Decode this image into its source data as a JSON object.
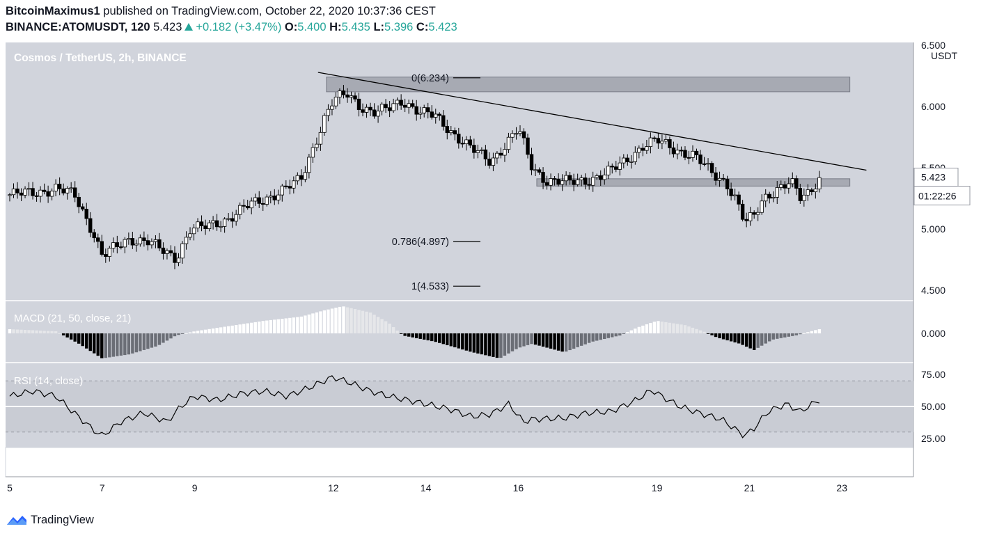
{
  "header": {
    "author": "BitcoinMaximus1",
    "published_text": "published on TradingView.com, October 22, 2020 10:37:36 CEST",
    "symbol": "BINANCE:ATOMUSDT, 120",
    "price": "5.423",
    "change": "+0.182 (+3.47%)",
    "o_label": "O:",
    "o_value": "5.400",
    "h_label": "H:",
    "h_value": "5.435",
    "l_label": "L:",
    "l_value": "5.396",
    "c_label": "C:",
    "c_value": "5.423"
  },
  "pane_title": "Cosmos / TetherUS, 2h, BINANCE",
  "currency_label": "USDT",
  "last_price_label": "5.423",
  "countdown_label": "01:22:26",
  "fib_labels": {
    "level0": "0(6.234)",
    "level786": "0.786(4.897)",
    "level1": "1(4.533)"
  },
  "macd_label": "MACD (21, 50, close, 21)",
  "rsi_label": "RSI (14, close)",
  "footer_brand": "TradingView",
  "colors": {
    "pane_bg": "#d1d4dc",
    "up_candle": "#ffffff",
    "down_candle": "#000000",
    "zone": "#9598a1",
    "accent_green": "#26a69a"
  },
  "chart_data": [
    {
      "type": "candlestick",
      "title": "Cosmos / TetherUS, 2h, BINANCE",
      "ylabel": "USDT",
      "ylim": [
        4.5,
        6.5
      ],
      "y_ticks": [
        "6.500",
        "6.000",
        "5.500",
        "5.000",
        "4.500"
      ],
      "x_ticks": [
        "5",
        "7",
        "9",
        "12",
        "14",
        "16",
        "19",
        "21",
        "23"
      ],
      "close_path": [
        [
          5.0,
          5.28
        ],
        [
          5.6,
          5.3
        ],
        [
          6.0,
          5.33
        ],
        [
          6.4,
          5.28
        ],
        [
          6.8,
          4.98
        ],
        [
          7.0,
          4.78
        ],
        [
          7.3,
          4.85
        ],
        [
          7.6,
          4.92
        ],
        [
          8.0,
          4.9
        ],
        [
          8.3,
          4.82
        ],
        [
          8.6,
          4.76
        ],
        [
          8.9,
          5.0
        ],
        [
          9.3,
          5.02
        ],
        [
          9.7,
          5.08
        ],
        [
          10.1,
          5.18
        ],
        [
          10.5,
          5.24
        ],
        [
          10.9,
          5.32
        ],
        [
          11.3,
          5.4
        ],
        [
          11.6,
          5.7
        ],
        [
          11.8,
          5.9
        ],
        [
          12.0,
          6.05
        ],
        [
          12.3,
          6.1
        ],
        [
          12.6,
          6.0
        ],
        [
          12.9,
          5.95
        ],
        [
          13.2,
          5.98
        ],
        [
          13.5,
          6.05
        ],
        [
          13.9,
          5.95
        ],
        [
          14.2,
          5.92
        ],
        [
          14.6,
          5.78
        ],
        [
          15.0,
          5.65
        ],
        [
          15.4,
          5.55
        ],
        [
          15.7,
          5.68
        ],
        [
          16.0,
          5.82
        ],
        [
          16.3,
          5.5
        ],
        [
          16.6,
          5.4
        ],
        [
          17.1,
          5.38
        ],
        [
          17.5,
          5.4
        ],
        [
          17.9,
          5.45
        ],
        [
          18.3,
          5.55
        ],
        [
          18.7,
          5.68
        ],
        [
          19.0,
          5.72
        ],
        [
          19.4,
          5.65
        ],
        [
          19.8,
          5.6
        ],
        [
          20.2,
          5.45
        ],
        [
          20.5,
          5.38
        ],
        [
          20.7,
          5.25
        ],
        [
          20.9,
          5.05
        ],
        [
          21.1,
          5.1
        ],
        [
          21.3,
          5.25
        ],
        [
          21.6,
          5.33
        ],
        [
          21.9,
          5.38
        ],
        [
          22.1,
          5.25
        ],
        [
          22.3,
          5.3
        ],
        [
          22.5,
          5.42
        ]
      ],
      "annotations": {
        "resistance_zone": [
          6.12,
          6.24
        ],
        "support_zone": [
          5.35,
          5.41
        ],
        "trendline": [
          [
            12.0,
            6.29
          ],
          [
            23.5,
            5.48
          ]
        ],
        "fib_levels": [
          {
            "ratio": 0,
            "price": 6.234
          },
          {
            "ratio": 0.786,
            "price": 4.897
          },
          {
            "ratio": 1,
            "price": 4.533
          }
        ]
      },
      "last_price": 5.423
    },
    {
      "type": "bar",
      "title": "MACD (21, 50, close, 21)",
      "y_ticks": [
        "0.000"
      ],
      "histogram_path": [
        [
          5.0,
          0.02
        ],
        [
          6.0,
          0.01
        ],
        [
          6.5,
          -0.05
        ],
        [
          7.0,
          -0.12
        ],
        [
          7.6,
          -0.1
        ],
        [
          8.2,
          -0.06
        ],
        [
          8.6,
          -0.01
        ],
        [
          9.0,
          0.01
        ],
        [
          9.6,
          0.03
        ],
        [
          10.5,
          0.06
        ],
        [
          11.3,
          0.08
        ],
        [
          11.8,
          0.11
        ],
        [
          12.2,
          0.13
        ],
        [
          12.8,
          0.1
        ],
        [
          13.2,
          0.05
        ],
        [
          13.5,
          -0.01
        ],
        [
          14.2,
          -0.04
        ],
        [
          15.0,
          -0.09
        ],
        [
          15.6,
          -0.12
        ],
        [
          16.0,
          -0.07
        ],
        [
          16.3,
          -0.05
        ],
        [
          17.0,
          -0.09
        ],
        [
          17.6,
          -0.04
        ],
        [
          18.2,
          -0.01
        ],
        [
          18.6,
          0.03
        ],
        [
          19.0,
          0.06
        ],
        [
          19.6,
          0.04
        ],
        [
          20.0,
          0.01
        ],
        [
          20.3,
          -0.02
        ],
        [
          20.8,
          -0.05
        ],
        [
          21.1,
          -0.08
        ],
        [
          21.5,
          -0.03
        ],
        [
          22.0,
          -0.01
        ],
        [
          22.5,
          0.02
        ]
      ]
    },
    {
      "type": "line",
      "title": "RSI (14, close)",
      "ylim": [
        0,
        100
      ],
      "y_ticks": [
        "75.00",
        "50.00",
        "25.00"
      ],
      "values_path": [
        [
          5.0,
          58
        ],
        [
          5.5,
          62
        ],
        [
          6.0,
          58
        ],
        [
          6.3,
          48
        ],
        [
          6.8,
          32
        ],
        [
          7.0,
          27
        ],
        [
          7.4,
          38
        ],
        [
          7.9,
          45
        ],
        [
          8.4,
          38
        ],
        [
          8.7,
          50
        ],
        [
          9.0,
          58
        ],
        [
          9.5,
          55
        ],
        [
          10.0,
          60
        ],
        [
          10.5,
          62
        ],
        [
          11.0,
          58
        ],
        [
          11.5,
          65
        ],
        [
          11.8,
          70
        ],
        [
          12.0,
          73
        ],
        [
          12.4,
          68
        ],
        [
          12.8,
          62
        ],
        [
          13.2,
          58
        ],
        [
          13.6,
          55
        ],
        [
          14.0,
          52
        ],
        [
          14.5,
          48
        ],
        [
          15.0,
          42
        ],
        [
          15.4,
          44
        ],
        [
          15.8,
          52
        ],
        [
          16.1,
          38
        ],
        [
          16.3,
          40
        ],
        [
          17.0,
          41
        ],
        [
          17.5,
          45
        ],
        [
          18.0,
          46
        ],
        [
          18.5,
          54
        ],
        [
          18.9,
          63
        ],
        [
          19.1,
          58
        ],
        [
          19.5,
          50
        ],
        [
          19.9,
          45
        ],
        [
          20.4,
          40
        ],
        [
          20.7,
          32
        ],
        [
          20.9,
          27
        ],
        [
          21.1,
          33
        ],
        [
          21.4,
          46
        ],
        [
          21.8,
          52
        ],
        [
          22.1,
          46
        ],
        [
          22.5,
          55
        ]
      ],
      "levels": [
        70,
        50,
        30
      ]
    }
  ]
}
